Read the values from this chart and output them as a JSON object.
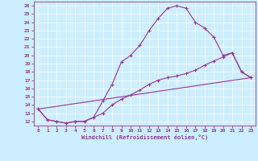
{
  "xlabel": "Windchill (Refroidissement éolien,°C)",
  "xlim": [
    -0.5,
    23.5
  ],
  "ylim": [
    11.5,
    26.5
  ],
  "yticks": [
    12,
    13,
    14,
    15,
    16,
    17,
    18,
    19,
    20,
    21,
    22,
    23,
    24,
    25,
    26
  ],
  "xticks": [
    0,
    1,
    2,
    3,
    4,
    5,
    6,
    7,
    8,
    9,
    10,
    11,
    12,
    13,
    14,
    15,
    16,
    17,
    18,
    19,
    20,
    21,
    22,
    23
  ],
  "color": "#993399",
  "bg_color": "#cceeff",
  "line1_x": [
    0,
    1,
    2,
    3,
    4,
    5,
    6,
    7,
    8,
    9,
    10,
    11,
    12,
    13,
    14,
    15,
    16,
    17,
    18,
    19,
    20,
    21,
    22,
    23
  ],
  "line1_y": [
    13.5,
    12.2,
    12.0,
    11.8,
    12.0,
    12.0,
    12.5,
    14.5,
    16.5,
    19.2,
    20.0,
    21.2,
    23.0,
    24.5,
    25.7,
    26.0,
    25.7,
    24.0,
    23.3,
    22.2,
    20.0,
    20.3,
    18.0,
    17.3
  ],
  "line2_x": [
    0,
    1,
    2,
    3,
    4,
    5,
    6,
    7,
    8,
    9,
    10,
    11,
    12,
    13,
    14,
    15,
    16,
    17,
    18,
    19,
    20,
    21,
    22,
    23
  ],
  "line2_y": [
    13.5,
    12.2,
    12.0,
    11.8,
    12.0,
    12.0,
    12.5,
    13.0,
    14.0,
    14.7,
    15.2,
    15.8,
    16.5,
    17.0,
    17.3,
    17.5,
    17.8,
    18.2,
    18.8,
    19.3,
    19.8,
    20.3,
    18.0,
    17.3
  ],
  "line3_x": [
    0,
    23
  ],
  "line3_y": [
    13.5,
    17.3
  ]
}
